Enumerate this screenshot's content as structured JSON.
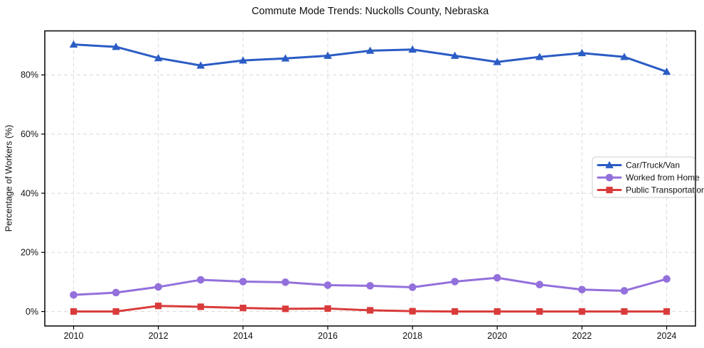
{
  "chart_data": {
    "type": "line",
    "title": "Commute Mode Trends: Nuckolls County, Nebraska",
    "xlabel": "",
    "ylabel": "Percentage of Workers (%)",
    "x": [
      2010,
      2011,
      2012,
      2013,
      2014,
      2015,
      2016,
      2017,
      2018,
      2019,
      2020,
      2021,
      2022,
      2023,
      2024
    ],
    "series": [
      {
        "name": "Car/Truck/Van",
        "color": "#2b5cc5",
        "marker": "triangle",
        "values": [
          90.3,
          89.5,
          85.7,
          83.2,
          84.9,
          85.6,
          86.5,
          88.2,
          88.6,
          86.5,
          84.4,
          86.1,
          87.4,
          86.1,
          81.1
        ]
      },
      {
        "name": "Worked from Home",
        "color": "#9370db",
        "marker": "circle",
        "values": [
          5.6,
          6.4,
          8.3,
          10.7,
          10.1,
          9.9,
          8.9,
          8.7,
          8.2,
          10.1,
          11.4,
          9.1,
          7.4,
          7.0,
          11.0
        ]
      },
      {
        "name": "Public Transportation",
        "color": "#d93b3b",
        "marker": "square",
        "values": [
          0.0,
          0.0,
          1.9,
          1.6,
          1.2,
          0.9,
          1.0,
          0.4,
          0.1,
          0.0,
          0.0,
          0.0,
          0.0,
          0.0,
          0.0
        ]
      }
    ],
    "x_ticks": [
      2010,
      2012,
      2014,
      2016,
      2018,
      2020,
      2022,
      2024
    ],
    "y_ticks": [
      0,
      20,
      40,
      60,
      80
    ],
    "y_tick_suffix": "%",
    "xlim": [
      2009.32,
      2024.68
    ],
    "ylim": [
      -4.9,
      94.9
    ],
    "grid": true,
    "grid_style": "dashed",
    "legend_position": "center right",
    "colors": {
      "grid": "#d9d9d9",
      "spine": "#000000",
      "legend_border": "#cccccc",
      "legend_background": "#ffffff",
      "text": "#111111"
    }
  }
}
